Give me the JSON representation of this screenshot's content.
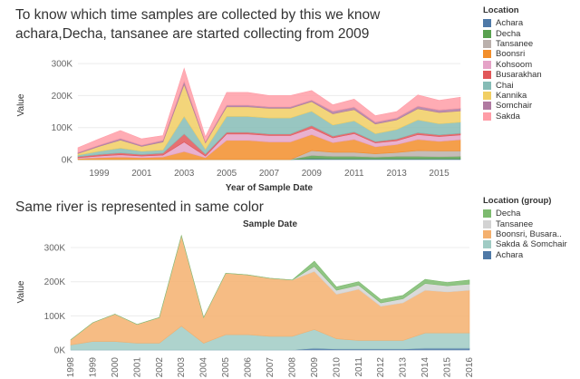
{
  "chart1_title": "To know which time samples are collected by this we know achara,Decha, tansanee are started collecting from 2009",
  "chart2_title": "Same river is represented in same color",
  "chart_data": [
    {
      "type": "area",
      "title": "To know which time samples are collected by this we know achara,Decha, tansanee are started collecting from 2009",
      "xlabel": "Year of Sample Date",
      "ylabel": "Value",
      "x": [
        1998,
        1999,
        2000,
        2001,
        2002,
        2003,
        2004,
        2005,
        2006,
        2007,
        2008,
        2009,
        2010,
        2011,
        2012,
        2013,
        2014,
        2015,
        2016
      ],
      "x_ticks": [
        "1999",
        "2001",
        "2003",
        "2005",
        "2007",
        "2009",
        "2011",
        "2013",
        "2015"
      ],
      "y_ticks": [
        "0K",
        "100K",
        "200K",
        "300K"
      ],
      "ylim": [
        0,
        340000
      ],
      "legend_title": "Location",
      "legend_position": "right",
      "series": [
        {
          "name": "Achara",
          "color": "#4e79a7",
          "values": [
            0,
            0,
            0,
            0,
            0,
            0,
            0,
            0,
            0,
            0,
            0,
            3000,
            2000,
            2000,
            2000,
            2000,
            2000,
            2000,
            2000
          ]
        },
        {
          "name": "Decha",
          "color": "#59a14f",
          "values": [
            0,
            0,
            0,
            0,
            0,
            0,
            0,
            0,
            0,
            0,
            0,
            10000,
            8000,
            8000,
            6000,
            8000,
            8000,
            7000,
            8000
          ]
        },
        {
          "name": "Tansanee",
          "color": "#bab0ac",
          "values": [
            0,
            0,
            0,
            0,
            0,
            0,
            0,
            0,
            0,
            0,
            0,
            15000,
            13000,
            13000,
            10000,
            12000,
            18000,
            18000,
            17000
          ]
        },
        {
          "name": "Boonsri",
          "color": "#f28e2b",
          "values": [
            3000,
            6000,
            8000,
            6000,
            8000,
            25000,
            6000,
            60000,
            60000,
            55000,
            55000,
            50000,
            30000,
            40000,
            22000,
            25000,
            35000,
            30000,
            35000
          ]
        },
        {
          "name": "Kohsoom",
          "color": "#e5a3c7",
          "values": [
            3000,
            5000,
            7000,
            5000,
            6000,
            30000,
            5000,
            20000,
            20000,
            20000,
            20000,
            20000,
            15000,
            18000,
            12000,
            12000,
            15000,
            15000,
            15000
          ]
        },
        {
          "name": "Busarakhan",
          "color": "#e15759",
          "values": [
            3000,
            5000,
            6000,
            5000,
            6000,
            25000,
            6000,
            5000,
            5000,
            5000,
            5000,
            8000,
            5000,
            5000,
            4000,
            5000,
            6000,
            5000,
            5000
          ]
        },
        {
          "name": "Chai",
          "color": "#86bcb6",
          "values": [
            5000,
            10000,
            15000,
            10000,
            10000,
            55000,
            15000,
            50000,
            50000,
            50000,
            50000,
            45000,
            35000,
            35000,
            25000,
            30000,
            40000,
            35000,
            35000
          ]
        },
        {
          "name": "Kannika",
          "color": "#f1ce63",
          "values": [
            5000,
            15000,
            25000,
            15000,
            25000,
            100000,
            20000,
            30000,
            30000,
            30000,
            30000,
            30000,
            35000,
            35000,
            30000,
            30000,
            35000,
            35000,
            35000
          ]
        },
        {
          "name": "Somchair",
          "color": "#b07aa1",
          "values": [
            3000,
            4000,
            5000,
            4000,
            5000,
            10000,
            4000,
            5000,
            5000,
            5000,
            5000,
            5000,
            8000,
            8000,
            6000,
            6000,
            8000,
            8000,
            8000
          ]
        },
        {
          "name": "Sakda",
          "color": "#ff9da7",
          "values": [
            15000,
            20000,
            25000,
            20000,
            15000,
            40000,
            15000,
            40000,
            40000,
            35000,
            35000,
            30000,
            20000,
            25000,
            20000,
            20000,
            35000,
            30000,
            35000
          ]
        }
      ]
    },
    {
      "type": "area",
      "title": "Sample Date",
      "xlabel": "",
      "ylabel": "Value",
      "x": [
        1998,
        1999,
        2000,
        2001,
        2002,
        2003,
        2004,
        2005,
        2006,
        2007,
        2008,
        2009,
        2010,
        2011,
        2012,
        2013,
        2014,
        2015,
        2016
      ],
      "x_ticks": [
        "1998",
        "1999",
        "2000",
        "2001",
        "2002",
        "2003",
        "2004",
        "2005",
        "2006",
        "2007",
        "2008",
        "2009",
        "2010",
        "2011",
        "2012",
        "2013",
        "2014",
        "2015",
        "2016"
      ],
      "y_ticks": [
        "0K",
        "100K",
        "200K",
        "300K"
      ],
      "ylim": [
        0,
        340000
      ],
      "legend_title": "Location (group)",
      "legend_position": "right",
      "series": [
        {
          "name": "Achara",
          "color": "#4e79a7",
          "values": [
            0,
            0,
            0,
            0,
            0,
            0,
            0,
            0,
            0,
            0,
            0,
            5000,
            3000,
            3000,
            3000,
            3000,
            5000,
            5000,
            5000
          ]
        },
        {
          "name": "Sakda & Somchair",
          "color": "#a0cbc4",
          "values": [
            15000,
            25000,
            25000,
            20000,
            20000,
            70000,
            20000,
            45000,
            45000,
            40000,
            40000,
            55000,
            30000,
            25000,
            25000,
            25000,
            45000,
            45000,
            45000
          ]
        },
        {
          "name": "Boonsri, Busara..",
          "color": "#f4b06e",
          "values": [
            15000,
            55000,
            80000,
            55000,
            75000,
            265000,
            75000,
            180000,
            175000,
            170000,
            165000,
            170000,
            130000,
            150000,
            100000,
            110000,
            125000,
            120000,
            125000
          ]
        },
        {
          "name": "Tansanee",
          "color": "#d3d3d3",
          "values": [
            0,
            0,
            0,
            0,
            0,
            0,
            0,
            0,
            0,
            0,
            0,
            15000,
            12000,
            12000,
            10000,
            12000,
            20000,
            18000,
            18000
          ]
        },
        {
          "name": "Decha",
          "color": "#7dbb6f",
          "values": [
            0,
            0,
            0,
            0,
            0,
            0,
            0,
            0,
            0,
            0,
            0,
            15000,
            10000,
            10000,
            10000,
            10000,
            12000,
            10000,
            12000
          ]
        }
      ]
    }
  ]
}
